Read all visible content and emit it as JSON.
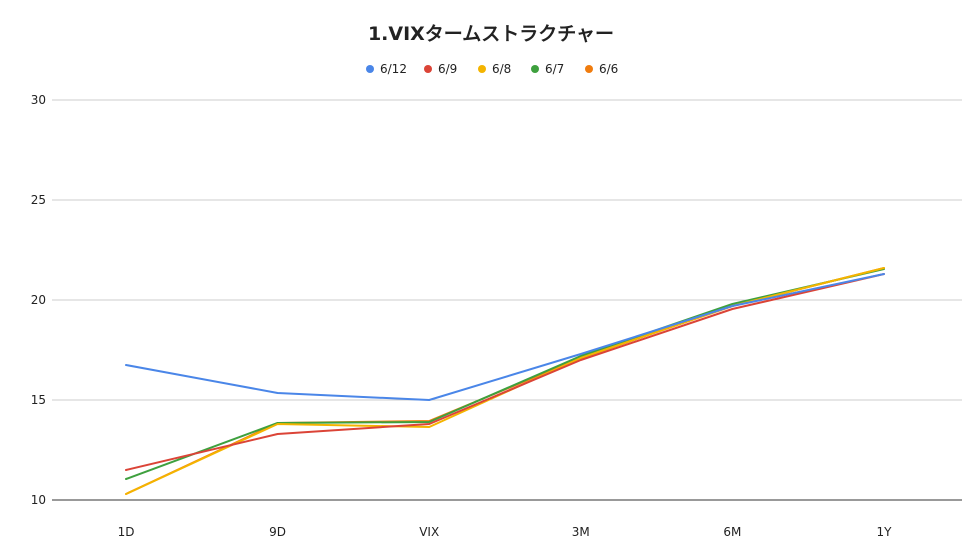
{
  "chart_data": {
    "type": "line",
    "title": "1.VIXタームストラクチャー",
    "xlabel": "",
    "ylabel": "",
    "categories": [
      "1D",
      "9D",
      "VIX",
      "3M",
      "6M",
      "1Y"
    ],
    "ylim": [
      10,
      30
    ],
    "yticks": [
      10,
      15,
      20,
      25,
      30
    ],
    "grid": true,
    "legend_position": "top-center",
    "series": [
      {
        "name": "6/12",
        "color": "#4a86e8",
        "values": [
          16.75,
          15.35,
          15.0,
          17.3,
          19.7,
          21.3
        ]
      },
      {
        "name": "6/9",
        "color": "#db4437",
        "values": [
          11.5,
          13.3,
          13.8,
          17.0,
          19.55,
          21.3
        ]
      },
      {
        "name": "6/8",
        "color": "#f4b400",
        "values": [
          10.3,
          13.8,
          13.65,
          17.1,
          19.7,
          21.6
        ]
      },
      {
        "name": "6/7",
        "color": "#3ea03e",
        "values": [
          11.05,
          13.85,
          13.9,
          17.2,
          19.8,
          21.55
        ]
      },
      {
        "name": "6/6",
        "color": "#f07c0e",
        "values": [
          10.3,
          13.85,
          13.95,
          17.1,
          19.7,
          21.6
        ]
      }
    ]
  }
}
